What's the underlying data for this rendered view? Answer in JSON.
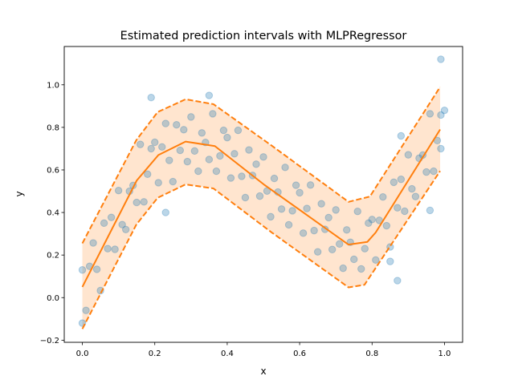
{
  "chart_data": {
    "type": "scatter",
    "title": "Estimated prediction intervals with MLPRegressor",
    "xlabel": "x",
    "ylabel": "y",
    "xlim": [
      -0.05,
      1.05
    ],
    "ylim": [
      -0.21,
      1.18
    ],
    "xticks": [
      "0.0",
      "0.2",
      "0.4",
      "0.6",
      "0.8",
      "1.0"
    ],
    "yticks": [
      "−0.2",
      "0.0",
      "0.2",
      "0.4",
      "0.6",
      "0.8",
      "1.0"
    ],
    "grid": false,
    "colors": {
      "points": "#1f77b4",
      "interval": "#ff7f0e"
    },
    "points": [
      [
        0.0,
        0.13
      ],
      [
        0.01,
        -0.06
      ],
      [
        0.02,
        0.147
      ],
      [
        0.03,
        0.257
      ],
      [
        0.04,
        0.133
      ],
      [
        0.05,
        0.033
      ],
      [
        0.06,
        0.35
      ],
      [
        0.07,
        0.23
      ],
      [
        0.08,
        0.377
      ],
      [
        0.09,
        0.227
      ],
      [
        0.1,
        0.503
      ],
      [
        0.11,
        0.343
      ],
      [
        0.12,
        0.32
      ],
      [
        0.13,
        0.5
      ],
      [
        0.14,
        0.527
      ],
      [
        0.15,
        0.447
      ],
      [
        0.16,
        0.72
      ],
      [
        0.17,
        0.45
      ],
      [
        0.18,
        0.58
      ],
      [
        0.19,
        0.7
      ],
      [
        0.2,
        0.73
      ],
      [
        0.21,
        0.54
      ],
      [
        0.22,
        0.708
      ],
      [
        0.23,
        0.818
      ],
      [
        0.24,
        0.645
      ],
      [
        0.25,
        0.545
      ],
      [
        0.26,
        0.812
      ],
      [
        0.27,
        0.692
      ],
      [
        0.28,
        0.789
      ],
      [
        0.29,
        0.639
      ],
      [
        0.3,
        0.849
      ],
      [
        0.31,
        0.689
      ],
      [
        0.32,
        0.594
      ],
      [
        0.33,
        0.774
      ],
      [
        0.34,
        0.729
      ],
      [
        0.35,
        0.649
      ],
      [
        0.36,
        0.864
      ],
      [
        0.37,
        0.594
      ],
      [
        0.38,
        0.666
      ],
      [
        0.39,
        0.786
      ],
      [
        0.4,
        0.752
      ],
      [
        0.41,
        0.562
      ],
      [
        0.42,
        0.676
      ],
      [
        0.43,
        0.786
      ],
      [
        0.44,
        0.57
      ],
      [
        0.45,
        0.47
      ],
      [
        0.46,
        0.694
      ],
      [
        0.47,
        0.574
      ],
      [
        0.48,
        0.627
      ],
      [
        0.49,
        0.477
      ],
      [
        0.5,
        0.661
      ],
      [
        0.51,
        0.501
      ],
      [
        0.52,
        0.38
      ],
      [
        0.53,
        0.56
      ],
      [
        0.54,
        0.496
      ],
      [
        0.55,
        0.416
      ],
      [
        0.56,
        0.612
      ],
      [
        0.57,
        0.342
      ],
      [
        0.58,
        0.408
      ],
      [
        0.59,
        0.528
      ],
      [
        0.6,
        0.493
      ],
      [
        0.61,
        0.303
      ],
      [
        0.62,
        0.419
      ],
      [
        0.63,
        0.529
      ],
      [
        0.64,
        0.315
      ],
      [
        0.65,
        0.215
      ],
      [
        0.66,
        0.441
      ],
      [
        0.67,
        0.321
      ],
      [
        0.68,
        0.376
      ],
      [
        0.69,
        0.226
      ],
      [
        0.7,
        0.412
      ],
      [
        0.71,
        0.252
      ],
      [
        0.72,
        0.138
      ],
      [
        0.73,
        0.318
      ],
      [
        0.74,
        0.26
      ],
      [
        0.75,
        0.18
      ],
      [
        0.76,
        0.405
      ],
      [
        0.77,
        0.135
      ],
      [
        0.78,
        0.23
      ],
      [
        0.79,
        0.35
      ],
      [
        0.8,
        0.367
      ],
      [
        0.81,
        0.177
      ],
      [
        0.82,
        0.363
      ],
      [
        0.83,
        0.473
      ],
      [
        0.84,
        0.338
      ],
      [
        0.85,
        0.238
      ],
      [
        0.86,
        0.542
      ],
      [
        0.87,
        0.422
      ],
      [
        0.88,
        0.556
      ],
      [
        0.89,
        0.406
      ],
      [
        0.9,
        0.671
      ],
      [
        0.91,
        0.511
      ],
      [
        0.92,
        0.475
      ],
      [
        0.93,
        0.655
      ],
      [
        0.94,
        0.67
      ],
      [
        0.95,
        0.59
      ],
      [
        0.96,
        0.864
      ],
      [
        0.97,
        0.594
      ],
      [
        0.98,
        0.738
      ],
      [
        0.99,
        0.858
      ],
      [
        1.0,
        0.88
      ],
      [
        0.99,
        0.7
      ],
      [
        0.19,
        0.94
      ],
      [
        0.35,
        0.95
      ],
      [
        0.0,
        -0.12
      ],
      [
        0.99,
        1.12
      ],
      [
        0.87,
        0.08
      ],
      [
        0.88,
        0.76
      ],
      [
        0.96,
        0.41
      ],
      [
        0.23,
        0.4
      ],
      [
        0.85,
        0.17
      ]
    ],
    "median": [
      [
        0.0,
        0.05
      ],
      [
        0.15,
        0.55
      ],
      [
        0.21,
        0.67
      ],
      [
        0.285,
        0.733
      ],
      [
        0.366,
        0.712
      ],
      [
        0.501,
        0.532
      ],
      [
        0.735,
        0.249
      ],
      [
        0.787,
        0.262
      ],
      [
        0.81,
        0.306
      ],
      [
        0.988,
        0.79
      ]
    ],
    "upper": [
      [
        0.0,
        0.255
      ],
      [
        0.149,
        0.74
      ],
      [
        0.208,
        0.872
      ],
      [
        0.285,
        0.932
      ],
      [
        0.362,
        0.909
      ],
      [
        0.523,
        0.714
      ],
      [
        0.735,
        0.45
      ],
      [
        0.794,
        0.475
      ],
      [
        0.988,
        0.99
      ]
    ],
    "lower": [
      [
        0.0,
        -0.147
      ],
      [
        0.149,
        0.343
      ],
      [
        0.208,
        0.469
      ],
      [
        0.285,
        0.532
      ],
      [
        0.362,
        0.513
      ],
      [
        0.523,
        0.306
      ],
      [
        0.735,
        0.048
      ],
      [
        0.779,
        0.06
      ],
      [
        0.988,
        0.595
      ]
    ]
  }
}
